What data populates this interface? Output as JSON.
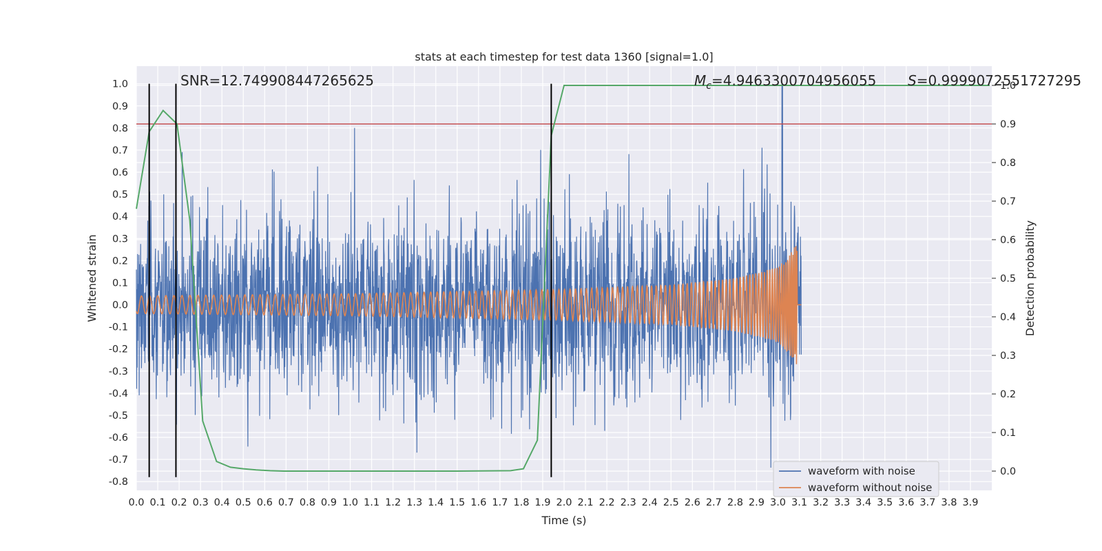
{
  "chart_data": {
    "type": "line",
    "title": "stats at each timestep for test data 1360 [signal=1.0]",
    "xlabel": "Time (s)",
    "ylabel": "Whitened strain",
    "ylabel_right": "Detection probability",
    "xlim": [
      0.0,
      4.0
    ],
    "ylim": [
      -0.84,
      1.08
    ],
    "ylim_right": [
      -0.05,
      1.05
    ],
    "grid": true,
    "legend_position": "lower-right",
    "x_ticks": [
      "0.0",
      "0.1",
      "0.2",
      "0.3",
      "0.4",
      "0.5",
      "0.6",
      "0.7",
      "0.8",
      "0.9",
      "1.0",
      "1.1",
      "1.2",
      "1.3",
      "1.4",
      "1.5",
      "1.6",
      "1.7",
      "1.8",
      "1.9",
      "2.0",
      "2.1",
      "2.2",
      "2.3",
      "2.4",
      "2.5",
      "2.6",
      "2.7",
      "2.8",
      "2.9",
      "3.0",
      "3.1",
      "3.2",
      "3.3",
      "3.4",
      "3.5",
      "3.6",
      "3.7",
      "3.8",
      "3.9"
    ],
    "y_ticks": [
      "-0.8",
      "-0.7",
      "-0.6",
      "-0.5",
      "-0.4",
      "-0.3",
      "-0.2",
      "-0.1",
      "0.0",
      "0.1",
      "0.2",
      "0.3",
      "0.4",
      "0.5",
      "0.6",
      "0.7",
      "0.8",
      "0.9",
      "1.0"
    ],
    "y_ticks_right": [
      "0.0",
      "0.1",
      "0.2",
      "0.3",
      "0.4",
      "0.5",
      "0.6",
      "0.7",
      "0.8",
      "0.9",
      "1.0"
    ],
    "series": [
      {
        "name": "waveform with noise",
        "color": "#4c72b0",
        "axis": "left",
        "description": "dense noisy strain, roughly between -0.6 and 0.7 with spikes up to 1.0 near t=3.02"
      },
      {
        "name": "waveform without noise",
        "color": "#dd8452",
        "axis": "left",
        "description": "chirp with amplitude growing from ~0.04 to ~0.28, ending near t=3.09 s",
        "envelope": {
          "x": [
            0.0,
            1.0,
            2.0,
            2.5,
            2.8,
            3.0,
            3.05,
            3.09
          ],
          "amplitude": [
            0.04,
            0.05,
            0.07,
            0.09,
            0.12,
            0.17,
            0.22,
            0.28
          ]
        },
        "merger_time": 3.09
      },
      {
        "color": "#55a868",
        "axis": "right",
        "x": [
          0.0,
          0.06,
          0.125,
          0.19,
          0.25,
          0.31,
          0.375,
          0.44,
          0.5,
          0.56,
          0.625,
          0.69,
          0.75,
          1.0,
          1.25,
          1.5,
          1.75,
          1.81,
          1.875,
          1.94,
          2.0,
          2.5,
          3.0,
          3.5,
          3.99
        ],
        "y": [
          0.68,
          0.88,
          0.935,
          0.9,
          0.65,
          0.13,
          0.025,
          0.01,
          0.006,
          0.003,
          0.001,
          0.0,
          0.0,
          0.0,
          0.0,
          0.0,
          0.001,
          0.006,
          0.08,
          0.87,
          1.0,
          1.0,
          1.0,
          1.0,
          1.0
        ]
      }
    ],
    "threshold": {
      "color": "#c44e52",
      "value_right": 0.9
    },
    "vertical_markers": {
      "color": "#000000",
      "x": [
        0.06,
        0.185,
        1.94
      ],
      "ymin": -0.78,
      "ymax": 1.0
    },
    "legend": [
      "waveform with noise",
      "waveform without noise"
    ]
  },
  "annotations": {
    "snr": "SNR=12.749908447265625",
    "mc_symbol": "M",
    "mc_sub": "c",
    "mc_value": "=4.9463300704956055",
    "s_symbol": "S",
    "s_value": "=0.9999072551727295"
  }
}
